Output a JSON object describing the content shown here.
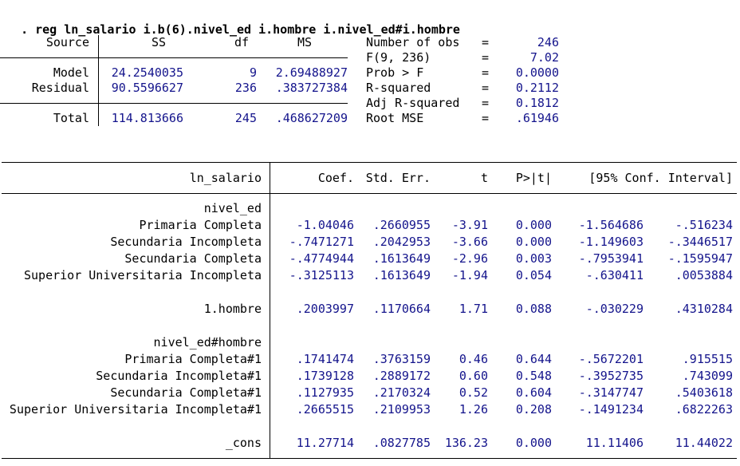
{
  "colors": {
    "result_navy": "#14148c",
    "text_black": "#000000",
    "background": "#ffffff"
  },
  "command": ". reg ln_salario i.b(6).nivel_ed i.hombre i.nivel_ed#i.hombre",
  "anova": {
    "col_headers": {
      "source": "Source",
      "ss": "SS",
      "df": "df",
      "ms": "MS"
    },
    "model": {
      "label": "Model",
      "ss": "24.2540035",
      "df": "9",
      "ms": "2.69488927"
    },
    "residual": {
      "label": "Residual",
      "ss": "90.5596627",
      "df": "236",
      "ms": ".383727384"
    },
    "total": {
      "label": "Total",
      "ss": "114.813666",
      "df": "245",
      "ms": ".468627209"
    }
  },
  "fit_stats": {
    "rows": [
      {
        "label": "Number of obs",
        "eq": "=",
        "value": "246"
      },
      {
        "label": "F(9, 236)",
        "eq": "=",
        "value": "7.02"
      },
      {
        "label": "Prob > F",
        "eq": "=",
        "value": "0.0000"
      },
      {
        "label": "R-squared",
        "eq": "=",
        "value": "0.2112"
      },
      {
        "label": "Adj R-squared",
        "eq": "=",
        "value": "0.1812"
      },
      {
        "label": "Root MSE",
        "eq": "=",
        "value": ".61946"
      }
    ]
  },
  "coef_table": {
    "headers": {
      "depvar": "ln_salario",
      "coef": "Coef.",
      "std_err": "Std. Err.",
      "t": "t",
      "p": "P>|t|",
      "ci": "[95% Conf. Interval]"
    },
    "rows": [
      {
        "type": "group",
        "label": "nivel_ed"
      },
      {
        "type": "data",
        "label": "Primaria Completa",
        "coef": "-1.04046",
        "std_err": ".2660955",
        "t": "-3.91",
        "p": "0.000",
        "ci_low": "-1.564686",
        "ci_high": "-.516234"
      },
      {
        "type": "data",
        "label": "Secundaria Incompleta",
        "coef": "-.7471271",
        "std_err": ".2042953",
        "t": "-3.66",
        "p": "0.000",
        "ci_low": "-1.149603",
        "ci_high": "-.3446517"
      },
      {
        "type": "data",
        "label": "Secundaria Completa",
        "coef": "-.4774944",
        "std_err": ".1613649",
        "t": "-2.96",
        "p": "0.003",
        "ci_low": "-.7953941",
        "ci_high": "-.1595947"
      },
      {
        "type": "data",
        "label": "Superior Universitaria Incompleta",
        "coef": "-.3125113",
        "std_err": ".1613649",
        "t": "-1.94",
        "p": "0.054",
        "ci_low": "-.630411",
        "ci_high": ".0053884"
      },
      {
        "type": "blank"
      },
      {
        "type": "data",
        "label": "1.hombre",
        "coef": ".2003997",
        "std_err": ".1170664",
        "t": "1.71",
        "p": "0.088",
        "ci_low": "-.030229",
        "ci_high": ".4310284"
      },
      {
        "type": "blank"
      },
      {
        "type": "group",
        "label": "nivel_ed#hombre"
      },
      {
        "type": "data",
        "label": "Primaria Completa#1",
        "coef": ".1741474",
        "std_err": ".3763159",
        "t": "0.46",
        "p": "0.644",
        "ci_low": "-.5672201",
        "ci_high": ".915515"
      },
      {
        "type": "data",
        "label": "Secundaria Incompleta#1",
        "coef": ".1739128",
        "std_err": ".2889172",
        "t": "0.60",
        "p": "0.548",
        "ci_low": "-.3952735",
        "ci_high": ".743099"
      },
      {
        "type": "data",
        "label": "Secundaria Completa#1",
        "coef": ".1127935",
        "std_err": ".2170324",
        "t": "0.52",
        "p": "0.604",
        "ci_low": "-.3147747",
        "ci_high": ".5403618"
      },
      {
        "type": "data",
        "label": "Superior Universitaria Incompleta#1",
        "coef": ".2665515",
        "std_err": ".2109953",
        "t": "1.26",
        "p": "0.208",
        "ci_low": "-.1491234",
        "ci_high": ".6822263"
      },
      {
        "type": "blank"
      },
      {
        "type": "data",
        "label": "_cons",
        "coef": "11.27714",
        "std_err": ".0827785",
        "t": "136.23",
        "p": "0.000",
        "ci_low": "11.11406",
        "ci_high": "11.44022"
      }
    ]
  }
}
